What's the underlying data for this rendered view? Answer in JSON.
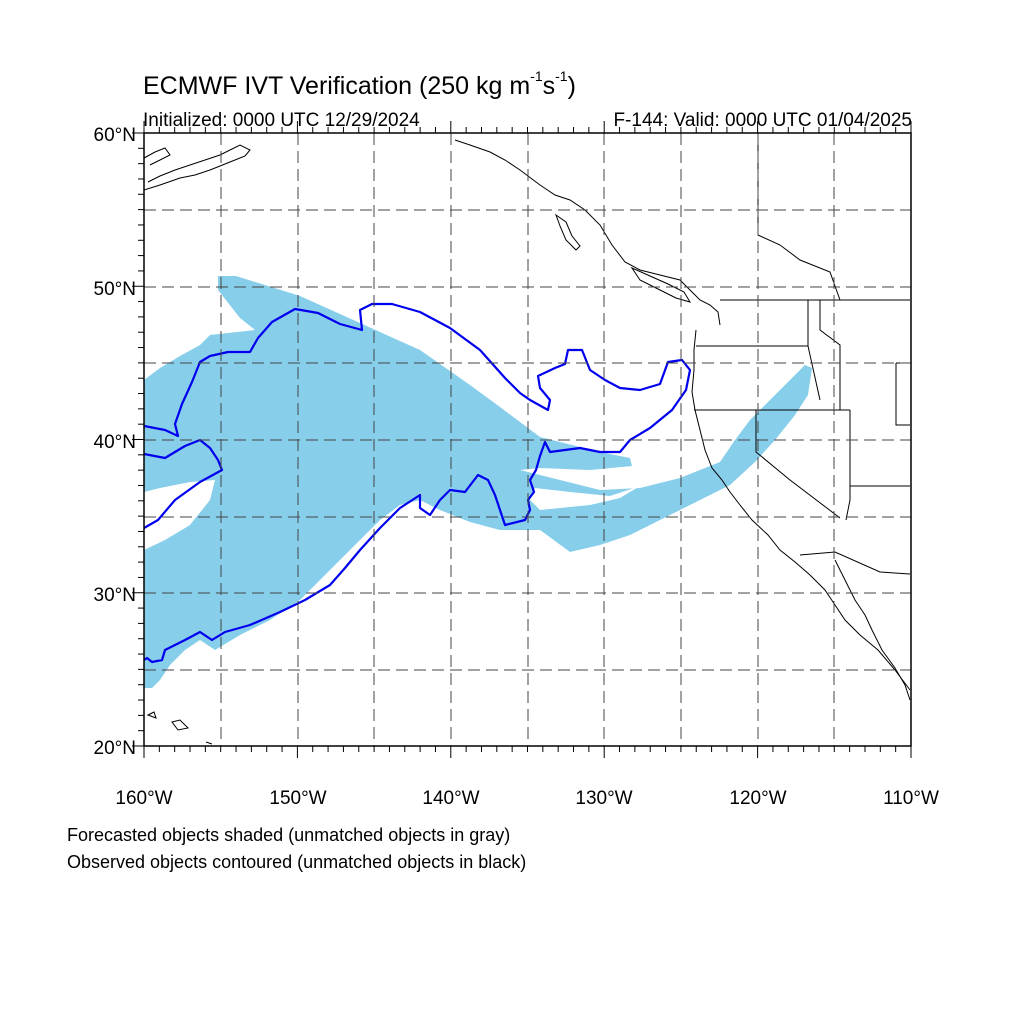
{
  "title": {
    "main": "ECMWF IVT Verification (250 kg m",
    "exp1": "-1",
    "mid": "s",
    "exp2": "-1",
    "end": ")"
  },
  "subtitle_left": "Initialized: 0000 UTC 12/29/2024",
  "subtitle_right": "F-144: Valid: 0000 UTC 01/04/2025",
  "axes": {
    "lat_labels": [
      "60°N",
      "50°N",
      "40°N",
      "30°N",
      "20°N"
    ],
    "lon_labels": [
      "160°W",
      "150°W",
      "140°W",
      "130°W",
      "120°W",
      "110°W"
    ],
    "lat_range": [
      20,
      60
    ],
    "lon_range": [
      -160,
      -110
    ],
    "grid": true,
    "grid_style": "dashed"
  },
  "legend": {
    "line1": "Forecasted objects shaded (unmatched objects in gray)",
    "line2": "Observed objects contoured (unmatched objects in black)"
  },
  "colors": {
    "forecast_fill": "#87ceeb",
    "observed_contour": "#0000ee",
    "coastline": "#000000",
    "grid": "#444444"
  }
}
